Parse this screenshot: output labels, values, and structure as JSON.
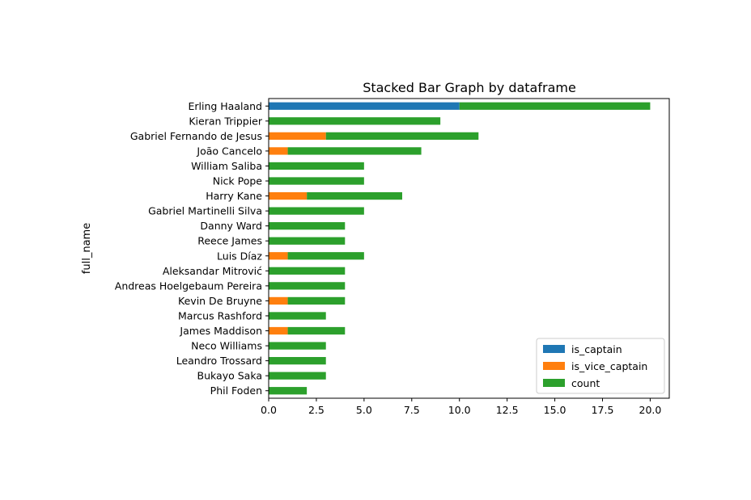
{
  "chart_data": {
    "type": "bar",
    "orientation": "horizontal",
    "stacked": true,
    "title": "Stacked Bar Graph by dataframe",
    "xlabel": "",
    "ylabel": "full_name",
    "xlim": [
      0,
      21
    ],
    "xticks": [
      0.0,
      2.5,
      5.0,
      7.5,
      10.0,
      12.5,
      15.0,
      17.5,
      20.0
    ],
    "xtick_labels": [
      "0.0",
      "2.5",
      "5.0",
      "7.5",
      "10.0",
      "12.5",
      "15.0",
      "17.5",
      "20.0"
    ],
    "grid": false,
    "legend_position": "lower-right",
    "categories": [
      "Erling Haaland",
      "Kieran Trippier",
      "Gabriel Fernando de Jesus",
      "João Cancelo",
      "William Saliba",
      "Nick Pope",
      "Harry Kane",
      "Gabriel Martinelli Silva",
      "Danny Ward",
      "Reece James",
      "Luis Díaz",
      "Aleksandar Mitrović",
      "Andreas Hoelgebaum Pereira",
      "Kevin De Bruyne",
      "Marcus Rashford",
      "James Maddison",
      "Neco Williams",
      "Leandro Trossard",
      "Bukayo Saka",
      "Phil Foden"
    ],
    "series": [
      {
        "name": "is_captain",
        "color": "#1f77b4",
        "values": [
          10,
          0,
          0,
          0,
          0,
          0,
          0,
          0,
          0,
          0,
          0,
          0,
          0,
          0,
          0,
          0,
          0,
          0,
          0,
          0
        ]
      },
      {
        "name": "is_vice_captain",
        "color": "#ff7f0e",
        "values": [
          0,
          0,
          3,
          1,
          0,
          0,
          2,
          0,
          0,
          0,
          1,
          0,
          0,
          1,
          0,
          1,
          0,
          0,
          0,
          0
        ]
      },
      {
        "name": "count",
        "color": "#2ca02c",
        "values": [
          10,
          9,
          8,
          7,
          5,
          5,
          5,
          5,
          4,
          4,
          4,
          4,
          4,
          3,
          3,
          3,
          3,
          3,
          3,
          2
        ]
      }
    ]
  }
}
